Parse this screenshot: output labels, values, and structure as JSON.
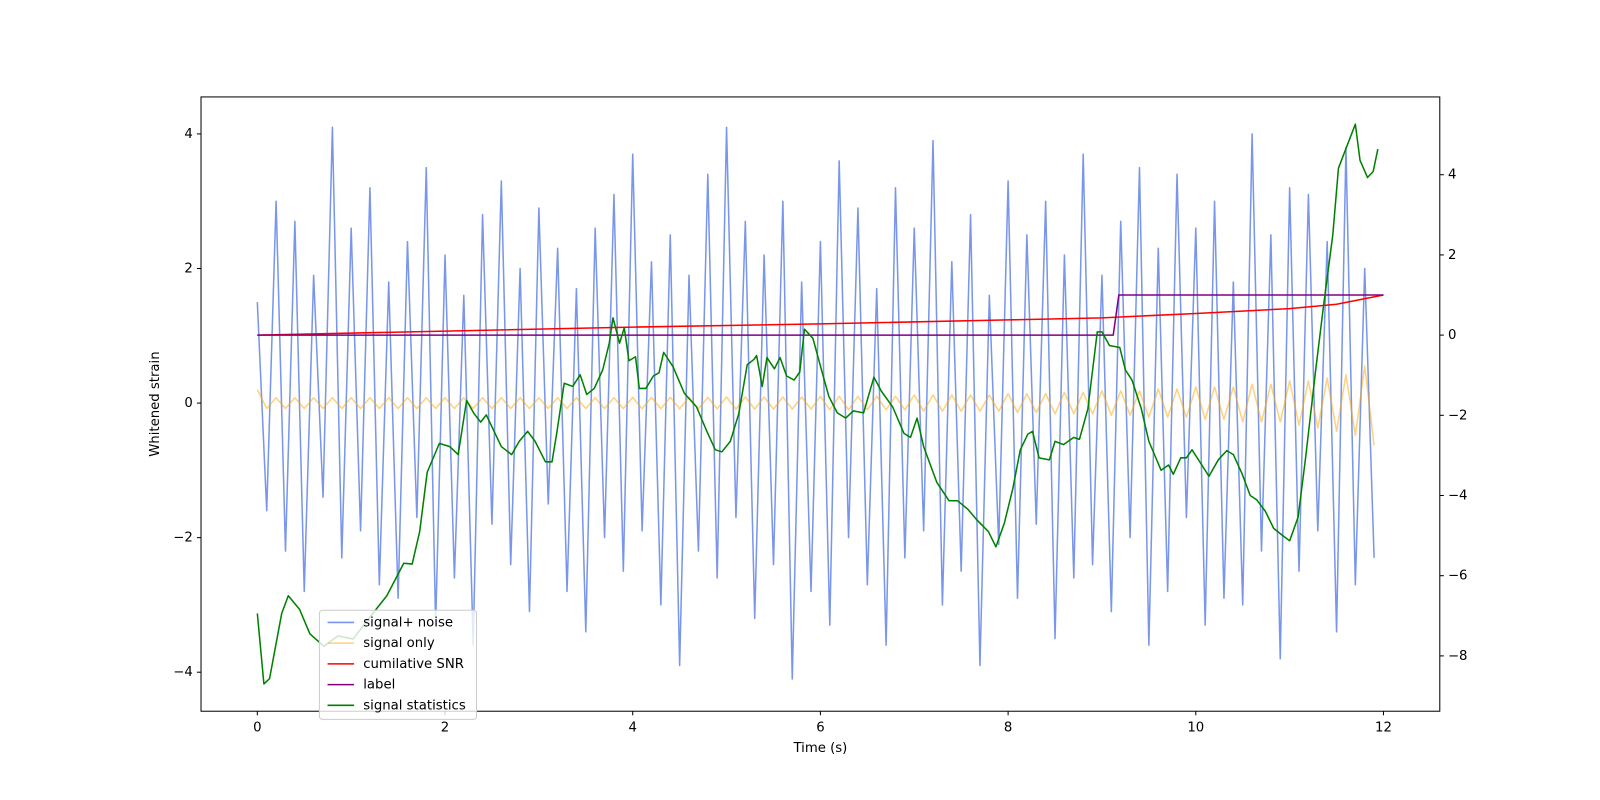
{
  "chart_data": {
    "type": "line",
    "xlabel": "Time (s)",
    "ylabel": "Whitened strain",
    "xlim": [
      -0.6,
      12.6
    ],
    "xticks": [
      0,
      2,
      4,
      6,
      8,
      10,
      12
    ],
    "ylim": [
      -4.58,
      4.55
    ],
    "yticks": [
      {
        "value": -4,
        "label": "−4"
      },
      {
        "value": -2,
        "label": "−2"
      },
      0,
      2,
      4
    ],
    "y2lim": [
      -9.38,
      5.94
    ],
    "y2ticks": [
      {
        "value": -8,
        "label": "−8"
      },
      {
        "value": -6,
        "label": "−6"
      },
      {
        "value": -4,
        "label": "−4"
      },
      {
        "value": -2,
        "label": "−2"
      },
      0,
      2,
      4
    ],
    "legend": "lower left",
    "x": [
      0,
      0.1,
      0.2,
      0.3,
      0.4,
      0.5,
      0.6,
      0.7,
      0.8,
      0.9,
      1,
      1.1,
      1.2,
      1.3,
      1.4,
      1.5,
      1.6,
      1.7,
      1.8,
      1.9,
      2,
      2.1,
      2.2,
      2.3,
      2.4,
      2.5,
      2.6,
      2.7,
      2.8,
      2.9,
      3,
      3.1,
      3.2,
      3.3,
      3.4,
      3.5,
      3.6,
      3.7,
      3.8,
      3.9,
      4,
      4.1,
      4.2,
      4.3,
      4.4,
      4.5,
      4.6,
      4.7,
      4.8,
      4.9,
      5,
      5.1,
      5.2,
      5.3,
      5.4,
      5.5,
      5.6,
      5.7,
      5.8,
      5.9,
      6,
      6.1,
      6.2,
      6.3,
      6.4,
      6.5,
      6.6,
      6.7,
      6.8,
      6.9,
      7,
      7.1,
      7.2,
      7.3,
      7.4,
      7.5,
      7.6,
      7.7,
      7.8,
      7.9,
      8,
      8.1,
      8.2,
      8.3,
      8.4,
      8.5,
      8.6,
      8.7,
      8.8,
      8.9,
      9,
      9.1,
      9.2,
      9.3,
      9.4,
      9.5,
      9.6,
      9.7,
      9.8,
      9.9,
      10,
      10.1,
      10.2,
      10.3,
      10.4,
      10.5,
      10.6,
      10.7,
      10.8,
      10.9,
      11,
      11.1,
      11.2,
      11.3,
      11.4,
      11.5,
      11.6,
      11.7,
      11.8,
      11.9
    ],
    "series": [
      {
        "name": "signal+ noise",
        "color": "#7996ea",
        "axis": "y",
        "values": [
          1.5,
          -1.6,
          3.0,
          -2.2,
          2.7,
          -2.8,
          1.9,
          -1.4,
          4.1,
          -2.3,
          2.6,
          -1.9,
          3.2,
          -2.7,
          1.8,
          -2.9,
          2.4,
          -1.7,
          3.5,
          -3.3,
          2.2,
          -2.6,
          1.6,
          -3.6,
          2.8,
          -1.8,
          3.3,
          -2.4,
          2.0,
          -3.1,
          2.9,
          -1.5,
          2.3,
          -2.8,
          1.7,
          -3.4,
          2.6,
          -2.0,
          3.1,
          -2.5,
          3.7,
          -1.9,
          2.1,
          -3.0,
          2.5,
          -3.9,
          1.9,
          -2.2,
          3.4,
          -2.6,
          4.1,
          -1.7,
          2.7,
          -3.2,
          2.2,
          -2.4,
          3.0,
          -4.1,
          1.8,
          -2.8,
          2.4,
          -3.3,
          3.6,
          -2.0,
          2.9,
          -2.7,
          1.7,
          -3.6,
          3.2,
          -2.3,
          2.6,
          -1.9,
          3.9,
          -3.0,
          2.1,
          -2.5,
          2.8,
          -3.9,
          1.6,
          -2.1,
          3.3,
          -2.9,
          2.5,
          -1.8,
          3.0,
          -3.5,
          2.2,
          -2.6,
          3.7,
          -2.4,
          1.9,
          -3.1,
          2.7,
          -2.0,
          3.5,
          -3.6,
          2.3,
          -2.8,
          3.4,
          -1.7,
          2.6,
          -3.3,
          3.0,
          -2.9,
          1.8,
          -3.0,
          4.0,
          -2.2,
          2.5,
          -3.8,
          3.2,
          -2.5,
          3.1,
          -1.9,
          2.4,
          -3.4,
          3.8,
          -2.7,
          2.0,
          -2.3
        ]
      },
      {
        "name": "signal only",
        "color": "#ffa500",
        "axis": "y",
        "values": [
          0.2,
          -0.08,
          0.08,
          -0.08,
          0.08,
          -0.08,
          0.08,
          -0.08,
          0.08,
          -0.08,
          0.08,
          -0.08,
          0.08,
          -0.08,
          0.08,
          -0.08,
          0.08,
          -0.08,
          0.08,
          -0.08,
          0.08,
          -0.08,
          0.08,
          -0.08,
          0.08,
          -0.08,
          0.08,
          -0.08,
          0.08,
          -0.08,
          0.08,
          -0.08,
          0.08,
          -0.08,
          0.08,
          -0.08,
          0.08,
          -0.08,
          0.08,
          -0.08,
          0.085,
          -0.085,
          0.085,
          -0.085,
          0.085,
          -0.085,
          0.085,
          -0.085,
          0.085,
          -0.085,
          0.09,
          -0.09,
          0.09,
          -0.09,
          0.09,
          -0.09,
          0.09,
          -0.09,
          0.09,
          -0.09,
          0.1,
          -0.1,
          0.1,
          -0.1,
          0.1,
          -0.1,
          0.1,
          -0.1,
          0.1,
          -0.1,
          0.12,
          -0.12,
          0.12,
          -0.12,
          0.12,
          -0.12,
          0.12,
          -0.12,
          0.12,
          -0.12,
          0.14,
          -0.14,
          0.14,
          -0.14,
          0.14,
          -0.16,
          0.16,
          -0.16,
          0.16,
          -0.16,
          0.18,
          -0.18,
          0.18,
          -0.18,
          0.18,
          -0.21,
          0.21,
          -0.21,
          0.21,
          -0.21,
          0.24,
          -0.24,
          0.24,
          -0.24,
          0.24,
          -0.28,
          0.28,
          -0.28,
          0.28,
          -0.28,
          0.33,
          -0.33,
          0.33,
          -0.37,
          0.37,
          -0.42,
          0.42,
          -0.48,
          0.55,
          -0.63
        ]
      },
      {
        "name": "cumilative SNR",
        "color": "#ff0000",
        "axis": "y2",
        "x": [
          0,
          2,
          4,
          6,
          8,
          9,
          10,
          11,
          11.5,
          12
        ],
        "values": [
          0,
          0.1,
          0.2,
          0.28,
          0.38,
          0.43,
          0.54,
          0.66,
          0.77,
          1.0
        ]
      },
      {
        "name": "label",
        "color": "#800080",
        "axis": "y2",
        "x": [
          0,
          9.12,
          9.18,
          12
        ],
        "values": [
          0,
          0,
          1,
          1
        ]
      },
      {
        "name": "signal statistics",
        "color": "#008000",
        "axis": "y2",
        "x": [
          0,
          0.07,
          0.13,
          0.26,
          0.33,
          0.45,
          0.56,
          0.71,
          0.86,
          1.02,
          1.18,
          1.38,
          1.56,
          1.65,
          1.73,
          1.81,
          1.94,
          2.05,
          2.14,
          2.23,
          2.31,
          2.38,
          2.44,
          2.6,
          2.71,
          2.79,
          2.88,
          2.96,
          3.07,
          3.14,
          3.19,
          3.27,
          3.36,
          3.44,
          3.51,
          3.59,
          3.68,
          3.75,
          3.79,
          3.86,
          3.91,
          3.96,
          4.03,
          4.07,
          4.14,
          4.22,
          4.28,
          4.33,
          4.43,
          4.55,
          4.68,
          4.79,
          4.88,
          4.95,
          5.04,
          5.13,
          5.22,
          5.29,
          5.32,
          5.38,
          5.43,
          5.51,
          5.57,
          5.64,
          5.72,
          5.78,
          5.83,
          5.92,
          6.02,
          6.09,
          6.18,
          6.27,
          6.35,
          6.46,
          6.57,
          6.65,
          6.77,
          6.89,
          6.96,
          7.03,
          7.1,
          7.24,
          7.37,
          7.46,
          7.57,
          7.66,
          7.79,
          7.87,
          7.96,
          8.05,
          8.13,
          8.21,
          8.26,
          8.33,
          8.44,
          8.5,
          8.59,
          8.7,
          8.76,
          8.85,
          8.95,
          9.0,
          9.08,
          9.19,
          9.25,
          9.32,
          9.42,
          9.5,
          9.63,
          9.71,
          9.76,
          9.84,
          9.9,
          9.96,
          10.05,
          10.14,
          10.24,
          10.33,
          10.4,
          10.49,
          10.58,
          10.65,
          10.74,
          10.83,
          10.91,
          11.0,
          11.09,
          11.17,
          11.28,
          11.36,
          11.46,
          11.52,
          11.59,
          11.7,
          11.75,
          11.83,
          11.89,
          11.94
        ],
        "values": [
          -6.94,
          -8.7,
          -8.57,
          -6.94,
          -6.5,
          -6.84,
          -7.45,
          -7.76,
          -7.5,
          -7.58,
          -7.09,
          -6.5,
          -5.69,
          -5.71,
          -4.9,
          -3.42,
          -2.7,
          -2.78,
          -2.98,
          -1.63,
          -1.96,
          -2.17,
          -1.99,
          -2.78,
          -2.98,
          -2.65,
          -2.4,
          -2.65,
          -3.16,
          -3.16,
          -2.45,
          -1.2,
          -1.28,
          -0.99,
          -1.48,
          -1.33,
          -0.87,
          -0.2,
          0.43,
          -0.2,
          0.18,
          -0.64,
          -0.54,
          -1.33,
          -1.33,
          -1.02,
          -0.94,
          -0.43,
          -0.79,
          -1.45,
          -1.79,
          -2.4,
          -2.86,
          -2.91,
          -2.65,
          -1.96,
          -0.74,
          -0.61,
          -0.51,
          -1.28,
          -0.56,
          -0.84,
          -0.56,
          -1.02,
          -1.12,
          -0.92,
          0.15,
          -0.08,
          -0.94,
          -1.53,
          -1.94,
          -2.07,
          -1.89,
          -1.94,
          -1.05,
          -1.4,
          -1.79,
          -2.45,
          -2.55,
          -2.07,
          -2.78,
          -3.67,
          -4.13,
          -4.13,
          -4.34,
          -4.59,
          -4.9,
          -5.28,
          -4.69,
          -3.83,
          -2.86,
          -2.47,
          -2.4,
          -3.06,
          -3.11,
          -2.65,
          -2.73,
          -2.55,
          -2.6,
          -1.84,
          0.08,
          0.08,
          -0.26,
          -0.31,
          -0.87,
          -1.12,
          -1.84,
          -2.65,
          -3.37,
          -3.24,
          -3.47,
          -3.06,
          -3.06,
          -2.86,
          -3.19,
          -3.52,
          -3.11,
          -2.88,
          -2.98,
          -3.44,
          -4.0,
          -4.11,
          -4.39,
          -4.82,
          -4.97,
          -5.13,
          -4.54,
          -3.06,
          -0.82,
          0.71,
          2.5,
          4.16,
          4.59,
          5.26,
          4.36,
          3.93,
          4.08,
          4.64
        ]
      }
    ]
  }
}
